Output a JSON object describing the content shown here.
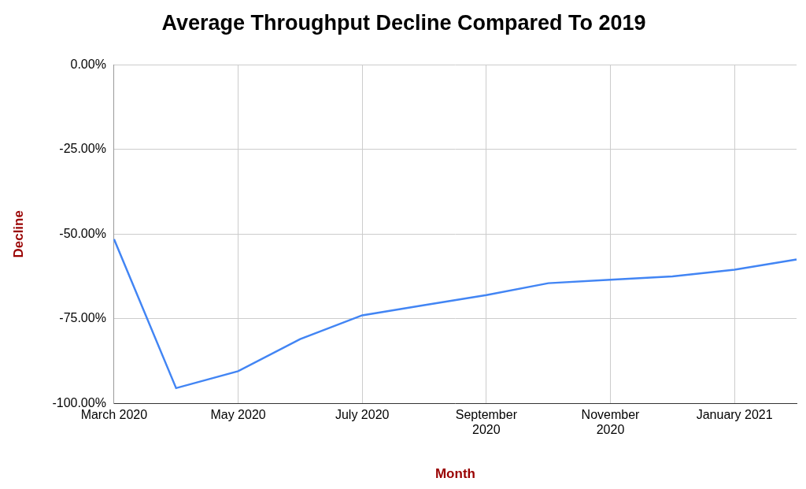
{
  "chart_data": {
    "type": "line",
    "title": "Average Throughput Decline Compared To 2019",
    "x_label": "Month",
    "y_label": "Decline",
    "categories": [
      "March 2020",
      null,
      "May 2020",
      null,
      "July 2020",
      null,
      "September 2020",
      null,
      "November 2020",
      null,
      "January 2021",
      null
    ],
    "values": [
      -51.5,
      -95.5,
      -90.5,
      -81,
      -74,
      -71,
      -68,
      -64.5,
      -63.5,
      -62.5,
      -60.5,
      -57.5
    ],
    "color": "#4285f4",
    "marker": "none",
    "ylim": [
      -100,
      0
    ],
    "yticks": [
      {
        "value": -100,
        "label": "-100.00%"
      },
      {
        "value": -75,
        "label": "-75.00%"
      },
      {
        "value": -50,
        "label": "-50.00%"
      },
      {
        "value": -25,
        "label": "-25.00%"
      },
      {
        "value": 0,
        "label": "0.00%"
      }
    ],
    "grid": true
  }
}
